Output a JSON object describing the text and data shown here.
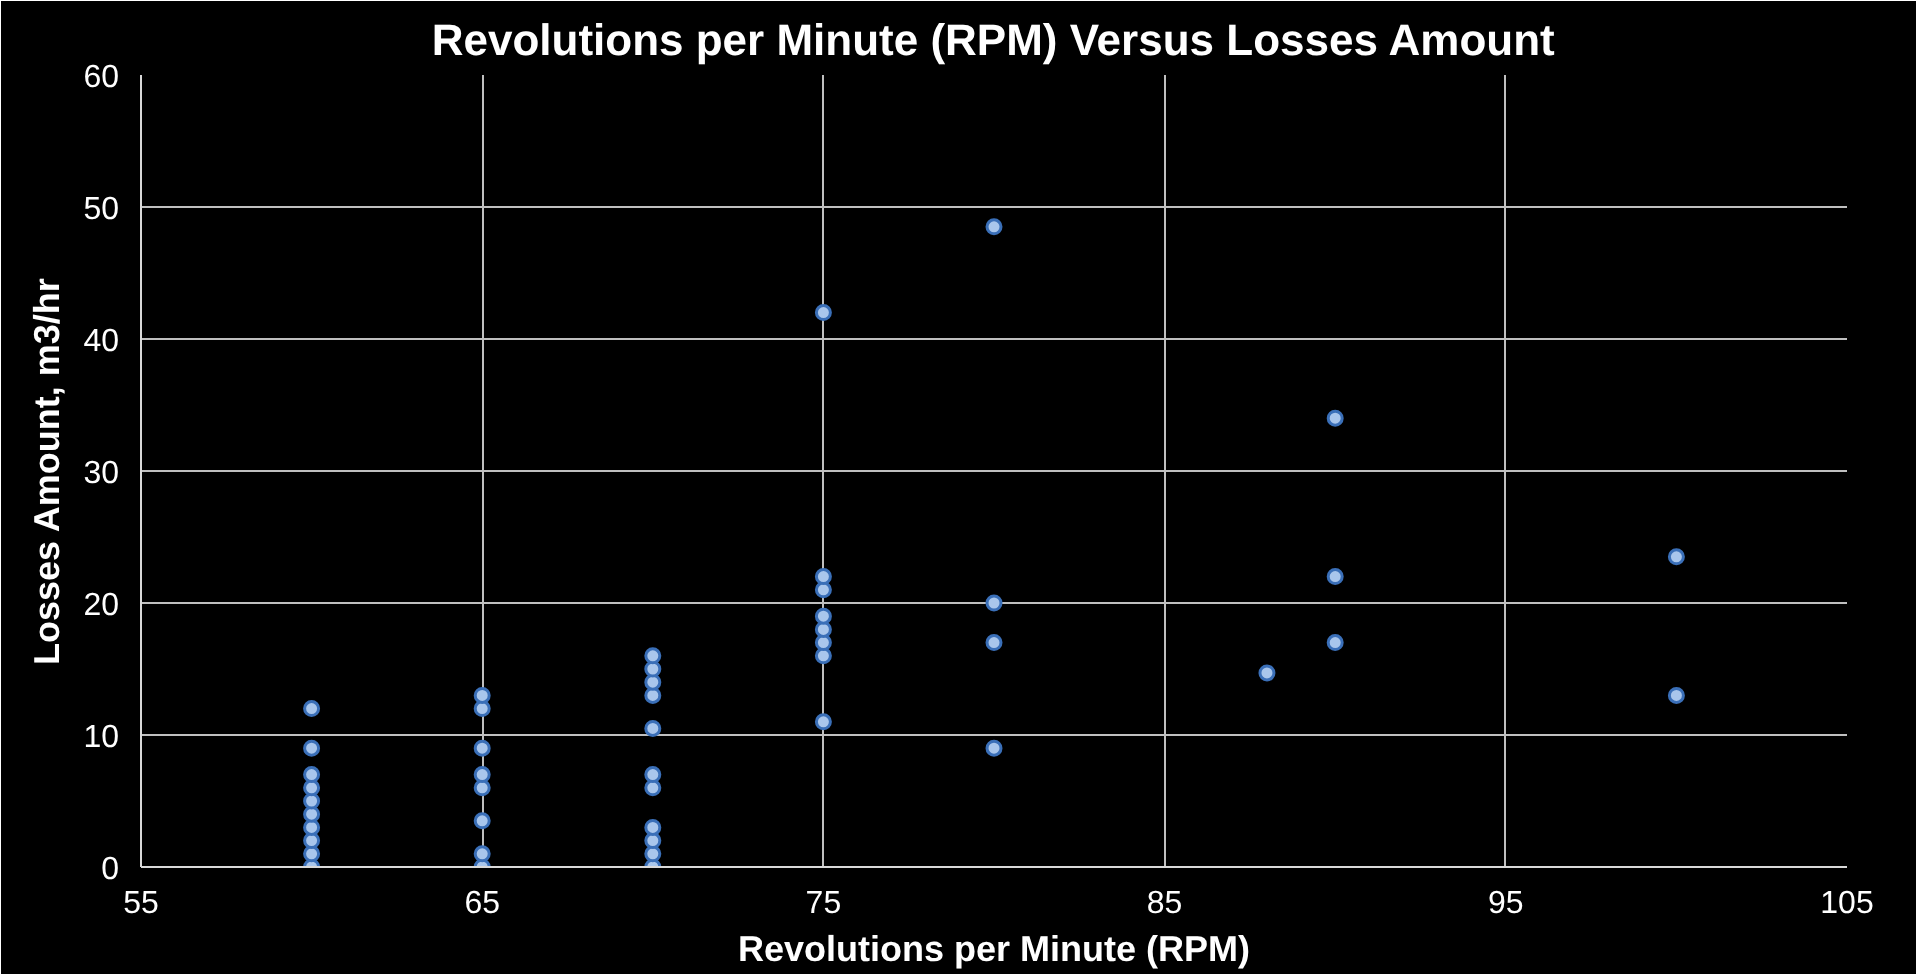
{
  "chart_data": {
    "type": "scatter",
    "title": "Revolutions per Minute (RPM) Versus Losses Amount",
    "xlabel": "Revolutions per Minute (RPM)",
    "ylabel": "Losses Amount, m3/hr",
    "xlim": [
      55,
      105
    ],
    "xticks": [
      55,
      65,
      75,
      85,
      95,
      105
    ],
    "ylim": [
      0,
      60
    ],
    "yticks": [
      0,
      10,
      20,
      30,
      40,
      50,
      60
    ],
    "grid": true,
    "marker": "circle",
    "series": [
      {
        "color": "#a9c6ec",
        "x": [
          60,
          60,
          60,
          60,
          60,
          60,
          60,
          60,
          60,
          60,
          65,
          65,
          65,
          65,
          65,
          65,
          65,
          65,
          70,
          70,
          70,
          70,
          70,
          70,
          70,
          70,
          70,
          70,
          70,
          75,
          75,
          75,
          75,
          75,
          75,
          75,
          75,
          80,
          80,
          80,
          80,
          88,
          90,
          90,
          90,
          100,
          100
        ],
        "values": [
          0,
          1,
          2,
          3,
          4,
          5,
          6,
          7,
          9,
          12,
          0,
          1,
          3.5,
          6,
          7,
          9,
          12,
          13,
          0,
          1,
          2,
          3,
          6,
          7,
          10.5,
          13,
          14,
          15,
          16,
          11,
          16,
          17,
          18,
          19,
          21,
          22,
          42,
          48.5,
          20,
          17,
          9,
          14.7,
          34,
          22,
          17,
          23.5,
          13
        ]
      }
    ]
  }
}
